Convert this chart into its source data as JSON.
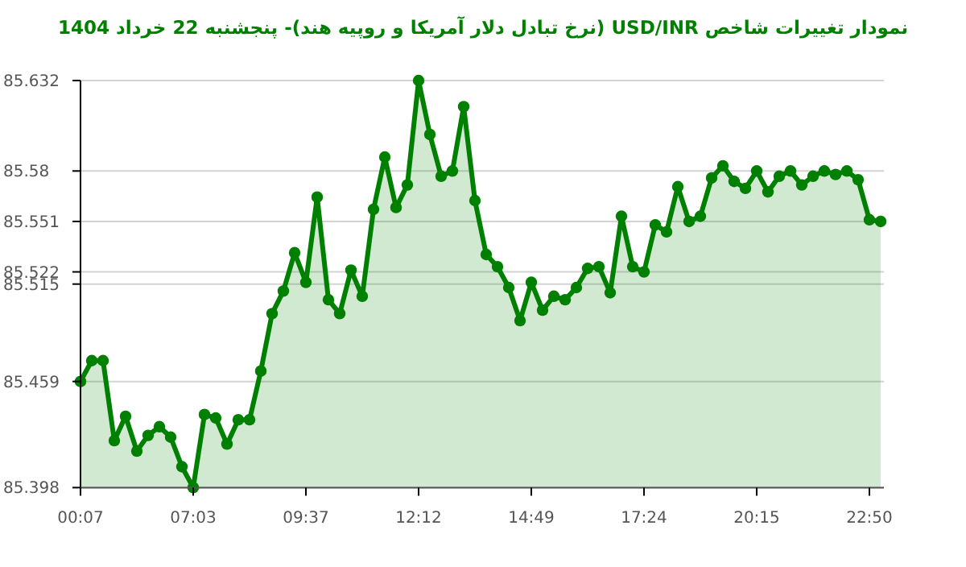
{
  "chart_data": {
    "type": "area",
    "title": "نمودار تغییرات شاخص USD/INR (نرخ تبادل دلار آمریکا و روپیه هند)- پنجشنبه  22 خرداد 1404",
    "categories": [
      "00:07",
      null,
      null,
      null,
      null,
      null,
      null,
      null,
      null,
      null,
      "07:03",
      null,
      null,
      null,
      null,
      null,
      null,
      null,
      null,
      null,
      "09:37",
      null,
      null,
      null,
      null,
      null,
      null,
      null,
      null,
      null,
      "12:12",
      null,
      null,
      null,
      null,
      null,
      null,
      null,
      null,
      null,
      "14:49",
      null,
      null,
      null,
      null,
      null,
      null,
      null,
      null,
      null,
      "17:24",
      null,
      null,
      null,
      null,
      null,
      null,
      null,
      null,
      null,
      "20:15",
      null,
      null,
      null,
      null,
      null,
      null,
      null,
      null,
      null,
      "22:50",
      null
    ],
    "values": [
      85.459,
      85.471,
      85.471,
      85.425,
      85.439,
      85.419,
      85.428,
      85.433,
      85.427,
      85.41,
      85.398,
      85.44,
      85.438,
      85.423,
      85.437,
      85.437,
      85.465,
      85.498,
      85.511,
      85.533,
      85.516,
      85.565,
      85.506,
      85.498,
      85.523,
      85.508,
      85.558,
      85.588,
      85.559,
      85.572,
      85.632,
      85.601,
      85.577,
      85.58,
      85.617,
      85.563,
      85.532,
      85.525,
      85.513,
      85.494,
      85.516,
      85.5,
      85.508,
      85.506,
      85.513,
      85.524,
      85.525,
      85.51,
      85.554,
      85.525,
      85.522,
      85.549,
      85.545,
      85.571,
      85.551,
      85.554,
      85.576,
      85.583,
      85.574,
      85.57,
      85.58,
      85.568,
      85.577,
      85.58,
      85.572,
      85.577,
      85.58,
      85.578,
      85.58,
      85.575,
      85.552,
      85.551
    ],
    "color": "#008000",
    "ylim": [
      85.398,
      85.632
    ],
    "yticks": [
      85.398,
      85.459,
      85.515,
      85.522,
      85.551,
      85.58,
      85.632
    ],
    "grid": "y",
    "marker": "circle"
  }
}
